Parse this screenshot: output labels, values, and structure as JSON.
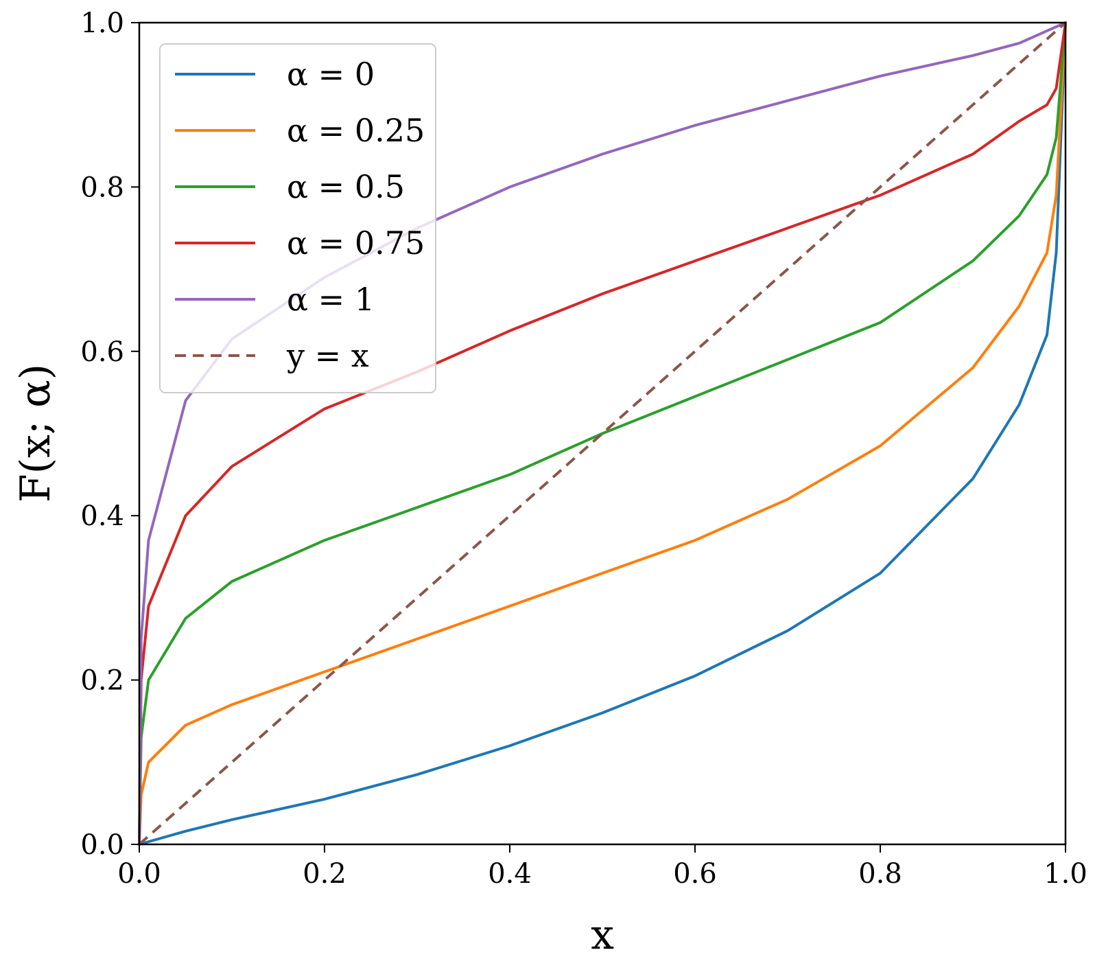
{
  "chart_data": {
    "type": "line",
    "title": "",
    "xlabel": "x",
    "ylabel": "F(x; α)",
    "xlim": [
      0.0,
      1.0
    ],
    "ylim": [
      0.0,
      1.0
    ],
    "xticks": [
      "0.0",
      "0.2",
      "0.4",
      "0.6",
      "0.8",
      "1.0"
    ],
    "yticks": [
      "0.0",
      "0.2",
      "0.4",
      "0.6",
      "0.8",
      "1.0"
    ],
    "grid": false,
    "legend_position": "top-left",
    "series": [
      {
        "name": "α = 0",
        "color": "#1f77b4",
        "style": "solid",
        "points": [
          [
            0.0,
            0.0
          ],
          [
            0.05,
            0.016
          ],
          [
            0.1,
            0.03
          ],
          [
            0.2,
            0.055
          ],
          [
            0.3,
            0.085
          ],
          [
            0.4,
            0.12
          ],
          [
            0.5,
            0.16
          ],
          [
            0.6,
            0.205
          ],
          [
            0.7,
            0.26
          ],
          [
            0.8,
            0.33
          ],
          [
            0.9,
            0.445
          ],
          [
            0.95,
            0.535
          ],
          [
            0.98,
            0.62
          ],
          [
            0.99,
            0.72
          ],
          [
            1.0,
            1.0
          ]
        ]
      },
      {
        "name": "α = 0.25",
        "color": "#ff7f0e",
        "style": "solid",
        "points": [
          [
            0.0,
            0.0
          ],
          [
            0.002,
            0.06
          ],
          [
            0.01,
            0.1
          ],
          [
            0.05,
            0.145
          ],
          [
            0.1,
            0.17
          ],
          [
            0.2,
            0.21
          ],
          [
            0.3,
            0.25
          ],
          [
            0.4,
            0.29
          ],
          [
            0.5,
            0.33
          ],
          [
            0.6,
            0.37
          ],
          [
            0.7,
            0.42
          ],
          [
            0.8,
            0.485
          ],
          [
            0.9,
            0.58
          ],
          [
            0.95,
            0.655
          ],
          [
            0.98,
            0.72
          ],
          [
            0.99,
            0.79
          ],
          [
            1.0,
            1.0
          ]
        ]
      },
      {
        "name": "α = 0.5",
        "color": "#2ca02c",
        "style": "solid",
        "points": [
          [
            0.0,
            0.0
          ],
          [
            0.002,
            0.13
          ],
          [
            0.01,
            0.2
          ],
          [
            0.05,
            0.275
          ],
          [
            0.1,
            0.32
          ],
          [
            0.2,
            0.37
          ],
          [
            0.3,
            0.41
          ],
          [
            0.4,
            0.45
          ],
          [
            0.5,
            0.5
          ],
          [
            0.6,
            0.545
          ],
          [
            0.7,
            0.59
          ],
          [
            0.8,
            0.635
          ],
          [
            0.9,
            0.71
          ],
          [
            0.95,
            0.765
          ],
          [
            0.98,
            0.815
          ],
          [
            0.99,
            0.86
          ],
          [
            1.0,
            1.0
          ]
        ]
      },
      {
        "name": "α = 0.75",
        "color": "#d62728",
        "style": "solid",
        "points": [
          [
            0.0,
            0.0
          ],
          [
            0.002,
            0.2
          ],
          [
            0.01,
            0.29
          ],
          [
            0.05,
            0.4
          ],
          [
            0.1,
            0.46
          ],
          [
            0.2,
            0.53
          ],
          [
            0.3,
            0.575
          ],
          [
            0.4,
            0.625
          ],
          [
            0.5,
            0.67
          ],
          [
            0.6,
            0.71
          ],
          [
            0.7,
            0.75
          ],
          [
            0.8,
            0.79
          ],
          [
            0.9,
            0.84
          ],
          [
            0.95,
            0.88
          ],
          [
            0.98,
            0.9
          ],
          [
            0.99,
            0.92
          ],
          [
            1.0,
            1.0
          ]
        ]
      },
      {
        "name": "α = 1",
        "color": "#9467bd",
        "style": "solid",
        "points": [
          [
            0.0,
            0.0
          ],
          [
            0.002,
            0.25
          ],
          [
            0.01,
            0.37
          ],
          [
            0.05,
            0.54
          ],
          [
            0.1,
            0.615
          ],
          [
            0.2,
            0.69
          ],
          [
            0.3,
            0.75
          ],
          [
            0.4,
            0.8
          ],
          [
            0.5,
            0.84
          ],
          [
            0.6,
            0.875
          ],
          [
            0.7,
            0.905
          ],
          [
            0.8,
            0.935
          ],
          [
            0.9,
            0.96
          ],
          [
            0.95,
            0.975
          ],
          [
            1.0,
            1.0
          ]
        ]
      },
      {
        "name": "y = x",
        "color": "#8c564b",
        "style": "dashed",
        "points": [
          [
            0.0,
            0.0
          ],
          [
            1.0,
            1.0
          ]
        ]
      }
    ]
  }
}
